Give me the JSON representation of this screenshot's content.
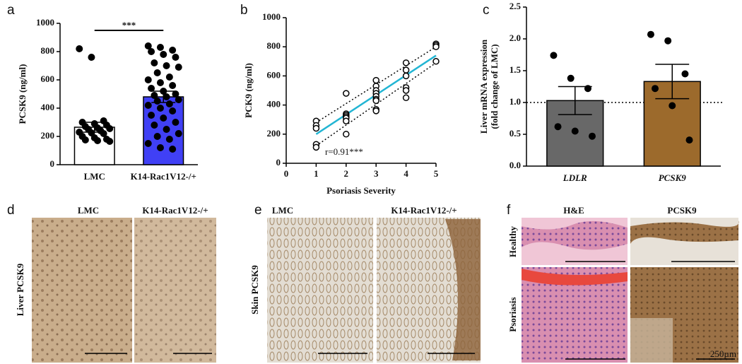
{
  "chart_data": [
    {
      "type": "bar",
      "panel": "a",
      "ylabel": [
        "PCSK9 (ng/ml)"
      ],
      "categories": [
        "LMC",
        "K14-Rac1V12-/+"
      ],
      "values": [
        265,
        480
      ],
      "errors": [
        35,
        40
      ],
      "colors": [
        "#ffffff",
        "#4040f5"
      ],
      "points": [
        [
          820,
          760,
          310,
          300,
          290,
          280,
          270,
          260,
          255,
          250,
          240,
          230,
          225,
          220,
          200,
          190,
          180,
          175,
          170,
          165
        ],
        [
          840,
          830,
          810,
          800,
          780,
          760,
          720,
          700,
          690,
          650,
          620,
          600,
          580,
          560,
          540,
          520,
          500,
          490,
          480,
          460,
          450,
          430,
          420,
          400,
          380,
          350,
          330,
          300,
          280,
          250,
          220,
          200,
          180,
          150,
          120,
          110
        ]
      ],
      "annotation": "***",
      "ylim": [
        0,
        1000
      ],
      "yticks": [
        0,
        200,
        400,
        600,
        800,
        1000
      ]
    },
    {
      "type": "scatter",
      "panel": "b",
      "ylabel": [
        "PCK9 (ng/ml)"
      ],
      "xlabel": "Psoriasis Severity",
      "x": [
        1,
        1,
        1,
        1,
        1,
        2,
        2,
        2,
        2,
        2,
        2,
        2,
        3,
        3,
        3,
        3,
        3,
        3,
        3,
        3,
        3,
        4,
        4,
        4,
        4,
        4,
        4,
        5,
        5,
        5,
        5
      ],
      "y": [
        290,
        260,
        240,
        130,
        110,
        480,
        340,
        330,
        320,
        310,
        290,
        200,
        570,
        530,
        500,
        480,
        460,
        440,
        430,
        370,
        360,
        690,
        640,
        600,
        520,
        500,
        450,
        820,
        810,
        800,
        700
      ],
      "fit_line": {
        "x": [
          1,
          5
        ],
        "y": [
          200,
          740
        ],
        "color": "#22b5d3"
      },
      "ci_lower": {
        "x": [
          1,
          5
        ],
        "y": [
          120,
          690
        ]
      },
      "ci_upper": {
        "x": [
          1,
          5
        ],
        "y": [
          280,
          800
        ]
      },
      "annotation": "r=0.91***",
      "xlim": [
        0,
        5
      ],
      "xticks": [
        0,
        1,
        2,
        3,
        4,
        5
      ],
      "ylim": [
        0,
        1000
      ],
      "yticks": [
        0,
        200,
        400,
        600,
        800,
        1000
      ]
    },
    {
      "type": "bar",
      "panel": "c",
      "ylabel": [
        "Liver mRNA expression",
        "(fold change of LMC)"
      ],
      "categories": [
        "LDLR",
        "PCSK9"
      ],
      "italic_categories": true,
      "values": [
        1.03,
        1.33
      ],
      "errors": [
        0.22,
        0.27
      ],
      "colors": [
        "#686868",
        "#9c6a2c"
      ],
      "points": [
        [
          1.74,
          1.38,
          1.22,
          0.62,
          0.55,
          0.47
        ],
        [
          2.07,
          1.97,
          1.45,
          1.22,
          0.95,
          0.41
        ]
      ],
      "reference_line": 1,
      "ylim": [
        0,
        2.5
      ],
      "yticks": [
        {
          "value": 0,
          "label": "0.0"
        },
        0.5,
        {
          "value": 1,
          "label": "1.0"
        },
        1.5,
        {
          "value": 2,
          "label": "2.0"
        },
        2.5
      ]
    }
  ],
  "image_panels": [
    {
      "panel": "d",
      "row_labels": [
        "Liver PCSK9"
      ],
      "columns": [
        "LMC",
        "K14-Rac1V12-/+"
      ]
    },
    {
      "panel": "e",
      "row_labels": [
        "Skin PCSK9"
      ],
      "columns": [
        "LMC",
        "K14-Rac1V12-/+"
      ]
    },
    {
      "panel": "f",
      "row_labels": [
        "Healthy",
        "Psoriasis"
      ],
      "columns": [
        "H&E",
        "PCSK9"
      ],
      "scale": "250µm"
    }
  ]
}
